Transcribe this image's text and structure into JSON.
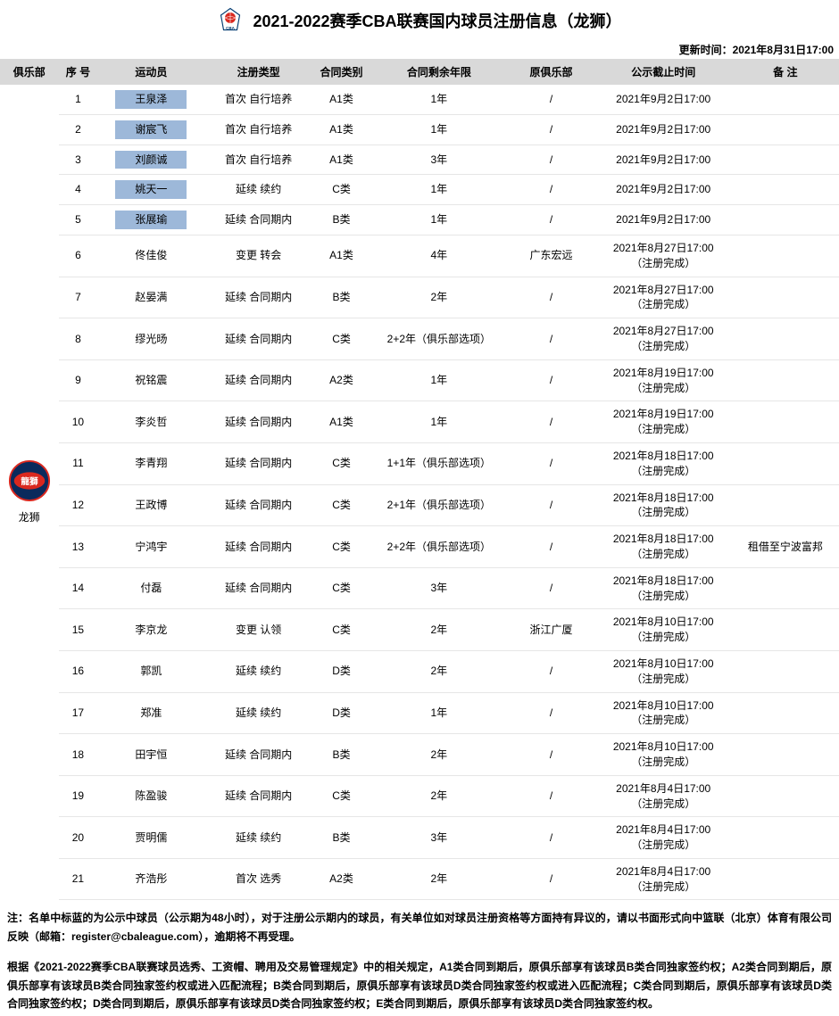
{
  "title": "2021-2022赛季CBA联赛国内球员注册信息（龙狮）",
  "update_time": "更新时间：2021年8月31日17:00",
  "columns": [
    "俱乐部",
    "序 号",
    "运动员",
    "注册类型",
    "合同类别",
    "合同剩余年限",
    "原俱乐部",
    "公示截止时间",
    "备 注"
  ],
  "club_name": "龙狮",
  "rows": [
    {
      "num": "1",
      "player": "王泉泽",
      "hl": true,
      "regtype": "首次  自行培养",
      "contract": "A1类",
      "remain": "1年",
      "orig": "/",
      "deadline": "2021年9月2日17:00",
      "remark": ""
    },
    {
      "num": "2",
      "player": "谢宸飞",
      "hl": true,
      "regtype": "首次  自行培养",
      "contract": "A1类",
      "remain": "1年",
      "orig": "/",
      "deadline": "2021年9月2日17:00",
      "remark": ""
    },
    {
      "num": "3",
      "player": "刘颜诚",
      "hl": true,
      "regtype": "首次  自行培养",
      "contract": "A1类",
      "remain": "3年",
      "orig": "/",
      "deadline": "2021年9月2日17:00",
      "remark": ""
    },
    {
      "num": "4",
      "player": "姚天一",
      "hl": true,
      "regtype": "延续    续约",
      "contract": "C类",
      "remain": "1年",
      "orig": "/",
      "deadline": "2021年9月2日17:00",
      "remark": ""
    },
    {
      "num": "5",
      "player": "张展瑜",
      "hl": true,
      "regtype": "延续  合同期内",
      "contract": "B类",
      "remain": "1年",
      "orig": "/",
      "deadline": "2021年9月2日17:00",
      "remark": ""
    },
    {
      "num": "6",
      "player": "佟佳俊",
      "hl": false,
      "regtype": "变更    转会",
      "contract": "A1类",
      "remain": "4年",
      "orig": "广东宏远",
      "deadline": "2021年8月27日17:00\n（注册完成）",
      "remark": ""
    },
    {
      "num": "7",
      "player": "赵晏满",
      "hl": false,
      "regtype": "延续  合同期内",
      "contract": "B类",
      "remain": "2年",
      "orig": "/",
      "deadline": "2021年8月27日17:00\n（注册完成）",
      "remark": ""
    },
    {
      "num": "8",
      "player": "缪光旸",
      "hl": false,
      "regtype": "延续  合同期内",
      "contract": "C类",
      "remain": "2+2年（俱乐部选项）",
      "orig": "/",
      "deadline": "2021年8月27日17:00\n（注册完成）",
      "remark": ""
    },
    {
      "num": "9",
      "player": "祝铭震",
      "hl": false,
      "regtype": "延续  合同期内",
      "contract": "A2类",
      "remain": "1年",
      "orig": "/",
      "deadline": "2021年8月19日17:00\n（注册完成）",
      "remark": ""
    },
    {
      "num": "10",
      "player": "李炎哲",
      "hl": false,
      "regtype": "延续  合同期内",
      "contract": "A1类",
      "remain": "1年",
      "orig": "/",
      "deadline": "2021年8月19日17:00\n（注册完成）",
      "remark": ""
    },
    {
      "num": "11",
      "player": "李青翔",
      "hl": false,
      "regtype": "延续  合同期内",
      "contract": "C类",
      "remain": "1+1年（俱乐部选项）",
      "orig": "/",
      "deadline": "2021年8月18日17:00\n（注册完成）",
      "remark": ""
    },
    {
      "num": "12",
      "player": "王政博",
      "hl": false,
      "regtype": "延续  合同期内",
      "contract": "C类",
      "remain": "2+1年（俱乐部选项）",
      "orig": "/",
      "deadline": "2021年8月18日17:00\n（注册完成）",
      "remark": ""
    },
    {
      "num": "13",
      "player": "宁鸿宇",
      "hl": false,
      "regtype": "延续  合同期内",
      "contract": "C类",
      "remain": "2+2年（俱乐部选项）",
      "orig": "/",
      "deadline": "2021年8月18日17:00\n（注册完成）",
      "remark": "租借至宁波富邦"
    },
    {
      "num": "14",
      "player": "付磊",
      "hl": false,
      "regtype": "延续  合同期内",
      "contract": "C类",
      "remain": "3年",
      "orig": "/",
      "deadline": "2021年8月18日17:00\n（注册完成）",
      "remark": ""
    },
    {
      "num": "15",
      "player": "李京龙",
      "hl": false,
      "regtype": "变更    认领",
      "contract": "C类",
      "remain": "2年",
      "orig": "浙江广厦",
      "deadline": "2021年8月10日17:00\n（注册完成）",
      "remark": ""
    },
    {
      "num": "16",
      "player": "郭凯",
      "hl": false,
      "regtype": "延续    续约",
      "contract": "D类",
      "remain": "2年",
      "orig": "/",
      "deadline": "2021年8月10日17:00\n（注册完成）",
      "remark": ""
    },
    {
      "num": "17",
      "player": "郑准",
      "hl": false,
      "regtype": "延续    续约",
      "contract": "D类",
      "remain": "1年",
      "orig": "/",
      "deadline": "2021年8月10日17:00\n（注册完成）",
      "remark": ""
    },
    {
      "num": "18",
      "player": "田宇恒",
      "hl": false,
      "regtype": "延续  合同期内",
      "contract": "B类",
      "remain": "2年",
      "orig": "/",
      "deadline": "2021年8月10日17:00\n（注册完成）",
      "remark": ""
    },
    {
      "num": "19",
      "player": "陈盈骏",
      "hl": false,
      "regtype": "延续  合同期内",
      "contract": "C类",
      "remain": "2年",
      "orig": "/",
      "deadline": "2021年8月4日17:00\n（注册完成）",
      "remark": ""
    },
    {
      "num": "20",
      "player": "贾明儒",
      "hl": false,
      "regtype": "延续    续约",
      "contract": "B类",
      "remain": "3年",
      "orig": "/",
      "deadline": "2021年8月4日17:00\n（注册完成）",
      "remark": ""
    },
    {
      "num": "21",
      "player": "齐浩彤",
      "hl": false,
      "regtype": "首次    选秀",
      "contract": "A2类",
      "remain": "2年",
      "orig": "/",
      "deadline": "2021年8月4日17:00\n（注册完成）",
      "remark": ""
    }
  ],
  "note1": "注：名单中标蓝的为公示中球员（公示期为48小时），对于注册公示期内的球员，有关单位如对球员注册资格等方面持有异议的，请以书面形式向中篮联（北京）体育有限公司反映（邮箱：register@cbaleague.com），逾期将不再受理。",
  "note2": "根据《2021-2022赛季CBA联赛球员选秀、工资帽、聘用及交易管理规定》中的相关规定，A1类合同到期后，原俱乐部享有该球员B类合同独家签约权；A2类合同到期后，原俱乐部享有该球员B类合同独家签约权或进入匹配流程；B类合同到期后，原俱乐部享有该球员D类合同独家签约权或进入匹配流程；C类合同到期后，原俱乐部享有该球员D类合同独家签约权；D类合同到期后，原俱乐部享有该球员D类合同独家签约权；E类合同到期后，原俱乐部享有该球员D类合同独家签约权。"
}
